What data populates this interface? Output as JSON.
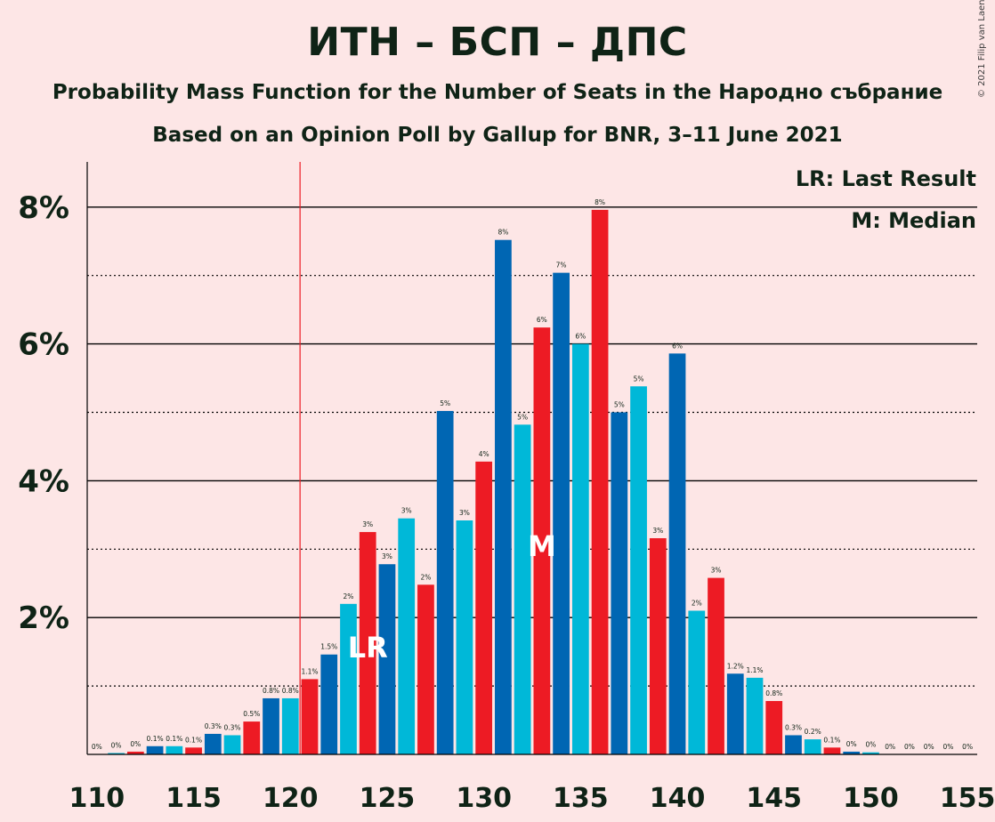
{
  "title": "ИТН – БСП – ДПС",
  "subtitle": "Probability Mass Function for the Number of Seats in the Народно събрание",
  "source": "Based on an Opinion Poll by Gallup for BNR, 3–11 June 2021",
  "copyright": "© 2021 Filip van Laenen",
  "colors": {
    "background": "#fde6e6",
    "series": [
      "#0066b3",
      "#00b8d8",
      "#ed1b24"
    ],
    "last_result_line": "#ed1b24",
    "axis_text": "#0f2316"
  },
  "chart_data": {
    "type": "bar",
    "x": [
      110,
      111,
      112,
      113,
      114,
      115,
      116,
      117,
      118,
      119,
      120,
      121,
      122,
      123,
      124,
      125,
      126,
      127,
      128,
      129,
      130,
      131,
      132,
      133,
      134,
      135,
      136,
      137,
      138,
      139,
      140,
      141,
      142,
      143,
      144,
      145,
      146,
      147,
      148,
      149,
      150,
      151,
      152,
      153,
      154,
      155
    ],
    "values": [
      0.0,
      0.02,
      0.04,
      0.12,
      0.12,
      0.1,
      0.3,
      0.28,
      0.48,
      0.82,
      0.82,
      1.1,
      1.46,
      2.2,
      3.25,
      2.78,
      3.45,
      2.48,
      5.02,
      3.42,
      4.28,
      7.52,
      4.82,
      6.24,
      7.04,
      6.0,
      7.96,
      5.0,
      5.38,
      3.16,
      5.86,
      2.1,
      2.58,
      1.18,
      1.12,
      0.78,
      0.28,
      0.22,
      0.1,
      0.04,
      0.03,
      0.0,
      0.0,
      0.0,
      0.0,
      0.0
    ],
    "value_labels": [
      "0%",
      "0%",
      "0%",
      "0.1%",
      "0.1%",
      "0.1%",
      "0.3%",
      "0.3%",
      "0.5%",
      "0.8%",
      "0.8%",
      "1.1%",
      "1.5%",
      "2%",
      "3%",
      "3%",
      "3%",
      "2%",
      "5%",
      "3%",
      "4%",
      "8%",
      "5%",
      "6%",
      "7%",
      "6%",
      "8%",
      "5%",
      "5%",
      "3%",
      "6%",
      "2%",
      "3%",
      "1.2%",
      "1.1%",
      "0.8%",
      "0.3%",
      "0.2%",
      "0.1%",
      "0%",
      "0%",
      "0%",
      "0%",
      "0%",
      "0%",
      "0%"
    ],
    "x_ticks": [
      110,
      115,
      120,
      125,
      130,
      135,
      140,
      145,
      150,
      155
    ],
    "x_tick_labels": [
      "110",
      "115",
      "120",
      "125",
      "130",
      "135",
      "140",
      "145",
      "150",
      "155"
    ],
    "y_ticks": [
      2,
      4,
      6,
      8
    ],
    "y_tick_labels": [
      "2%",
      "4%",
      "6%",
      "8%"
    ],
    "y_minor_ticks": [
      1,
      3,
      5,
      7
    ],
    "ylim": [
      0,
      8.7
    ],
    "xlim": [
      109.5,
      155.5
    ],
    "last_result": 121,
    "last_result_label": "LR",
    "median": 133,
    "median_label": "M",
    "legend": [
      "LR: Last Result",
      "M: Median"
    ],
    "legend_position": "top-right",
    "grid": true
  }
}
